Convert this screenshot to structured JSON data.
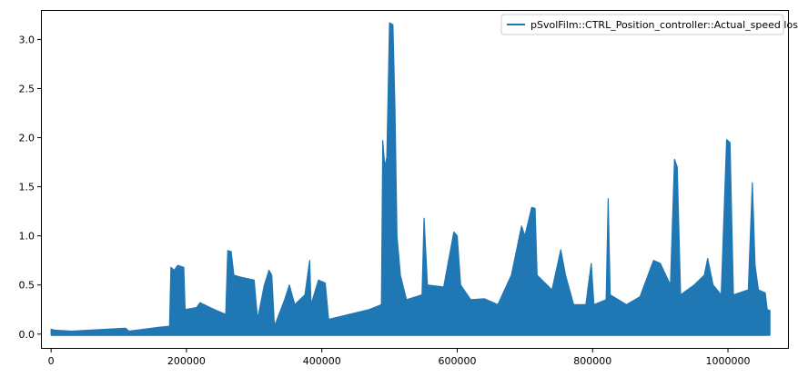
{
  "chart_data": {
    "type": "line",
    "title": "",
    "xlabel": "",
    "ylabel": "",
    "xlim": [
      -15000,
      1090000
    ],
    "ylim": [
      -0.15,
      3.3
    ],
    "grid": false,
    "legend_position": "top-right",
    "x_ticks": [
      0,
      200000,
      400000,
      600000,
      800000,
      1000000
    ],
    "x_tick_labels": [
      "0",
      "200000",
      "400000",
      "600000",
      "800000",
      "1000000"
    ],
    "y_ticks": [
      0.0,
      0.5,
      1.0,
      1.5,
      2.0,
      2.5,
      3.0
    ],
    "y_tick_labels": [
      "0.0",
      "0.5",
      "1.0",
      "1.5",
      "2.0",
      "2.5",
      "3.0"
    ],
    "series": [
      {
        "name": "pSvolFilm::CTRL_Position_controller::Actual_speed loss",
        "color": "#1f77b4",
        "x_end": 1062000,
        "envelope": [
          [
            0,
            0.05
          ],
          [
            5000,
            0.04
          ],
          [
            30000,
            0.03
          ],
          [
            110000,
            0.06
          ],
          [
            115000,
            0.03
          ],
          [
            160000,
            0.07
          ],
          [
            175000,
            0.08
          ],
          [
            177000,
            0.68
          ],
          [
            182000,
            0.65
          ],
          [
            187000,
            0.7
          ],
          [
            196000,
            0.68
          ],
          [
            198000,
            0.25
          ],
          [
            215000,
            0.27
          ],
          [
            220000,
            0.32
          ],
          [
            238000,
            0.26
          ],
          [
            258000,
            0.2
          ],
          [
            261000,
            0.85
          ],
          [
            266000,
            0.84
          ],
          [
            270000,
            0.6
          ],
          [
            280000,
            0.58
          ],
          [
            300000,
            0.55
          ],
          [
            305000,
            0.15
          ],
          [
            315000,
            0.5
          ],
          [
            322000,
            0.65
          ],
          [
            326000,
            0.6
          ],
          [
            330000,
            0.08
          ],
          [
            345000,
            0.35
          ],
          [
            352000,
            0.5
          ],
          [
            360000,
            0.3
          ],
          [
            375000,
            0.4
          ],
          [
            382000,
            0.75
          ],
          [
            384000,
            0.3
          ],
          [
            395000,
            0.55
          ],
          [
            405000,
            0.52
          ],
          [
            410000,
            0.15
          ],
          [
            470000,
            0.25
          ],
          [
            488000,
            0.3
          ],
          [
            490000,
            1.97
          ],
          [
            493000,
            1.7
          ],
          [
            496000,
            1.8
          ],
          [
            500000,
            3.17
          ],
          [
            505000,
            3.15
          ],
          [
            508000,
            2.3
          ],
          [
            511000,
            1.0
          ],
          [
            516000,
            0.6
          ],
          [
            525000,
            0.35
          ],
          [
            548000,
            0.4
          ],
          [
            551000,
            1.18
          ],
          [
            556000,
            0.5
          ],
          [
            580000,
            0.48
          ],
          [
            595000,
            1.04
          ],
          [
            600000,
            1.0
          ],
          [
            605000,
            0.5
          ],
          [
            620000,
            0.35
          ],
          [
            640000,
            0.36
          ],
          [
            660000,
            0.3
          ],
          [
            680000,
            0.6
          ],
          [
            695000,
            1.1
          ],
          [
            700000,
            1.0
          ],
          [
            710000,
            1.29
          ],
          [
            715000,
            1.28
          ],
          [
            718000,
            0.6
          ],
          [
            740000,
            0.45
          ],
          [
            753000,
            0.86
          ],
          [
            760000,
            0.6
          ],
          [
            772000,
            0.3
          ],
          [
            790000,
            0.3
          ],
          [
            798000,
            0.72
          ],
          [
            802000,
            0.3
          ],
          [
            820000,
            0.35
          ],
          [
            823000,
            1.38
          ],
          [
            826000,
            0.4
          ],
          [
            850000,
            0.3
          ],
          [
            870000,
            0.38
          ],
          [
            890000,
            0.75
          ],
          [
            900000,
            0.72
          ],
          [
            915000,
            0.5
          ],
          [
            921000,
            1.78
          ],
          [
            925000,
            1.7
          ],
          [
            930000,
            0.4
          ],
          [
            950000,
            0.5
          ],
          [
            965000,
            0.6
          ],
          [
            970000,
            0.77
          ],
          [
            978000,
            0.5
          ],
          [
            990000,
            0.4
          ],
          [
            998000,
            1.98
          ],
          [
            1003000,
            1.95
          ],
          [
            1008000,
            0.4
          ],
          [
            1030000,
            0.45
          ],
          [
            1036000,
            1.54
          ],
          [
            1040000,
            0.7
          ],
          [
            1045000,
            0.45
          ],
          [
            1055000,
            0.42
          ],
          [
            1058000,
            0.25
          ],
          [
            1062000,
            0.24
          ]
        ]
      }
    ]
  }
}
